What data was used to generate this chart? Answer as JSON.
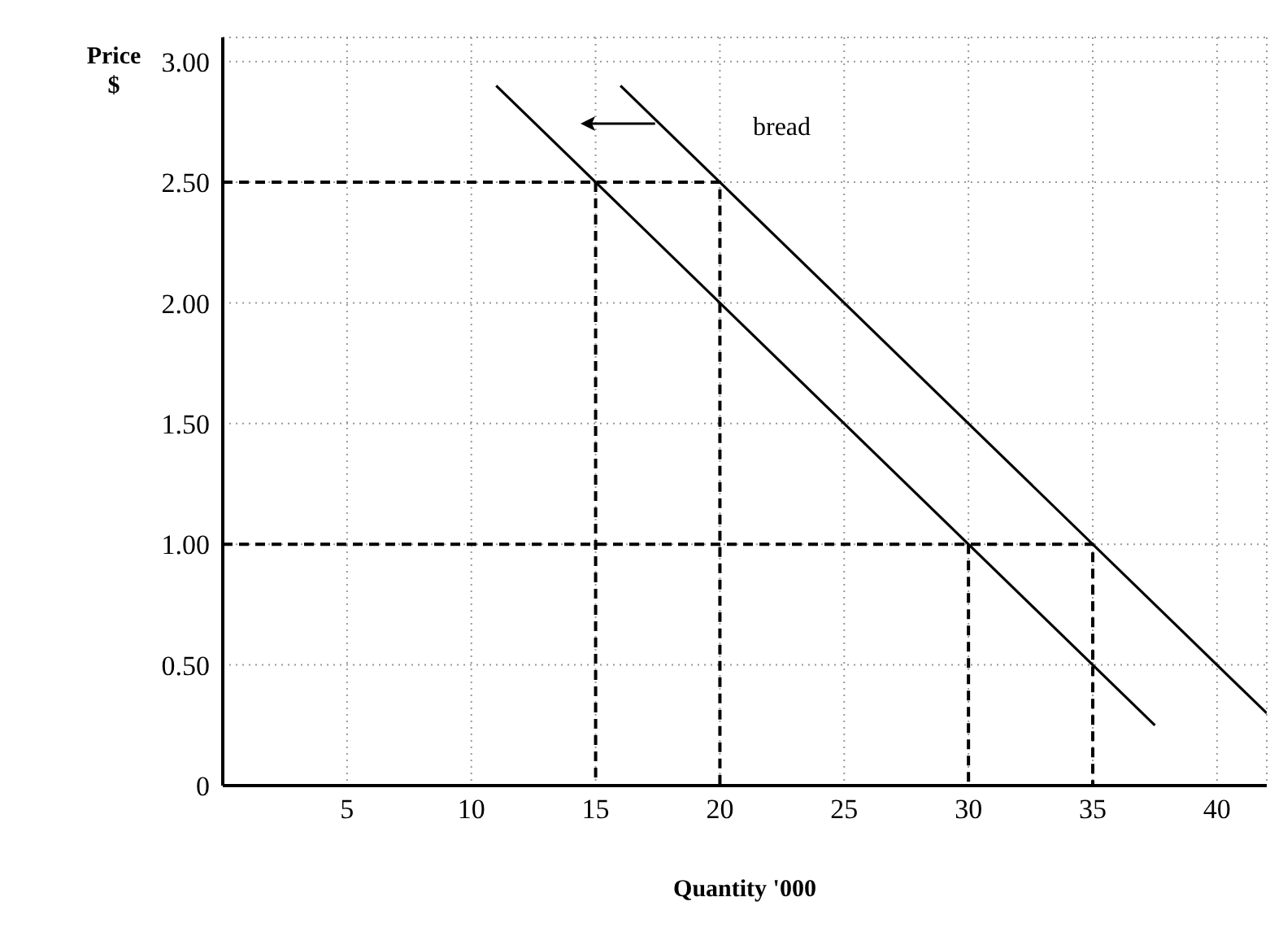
{
  "chart_data": {
    "type": "line",
    "xlabel": "Quantity '000",
    "ylabel": "Price $",
    "xlim": [
      0,
      42
    ],
    "xticks": [
      5,
      10,
      15,
      20,
      25,
      30,
      35,
      40
    ],
    "ylim": [
      0,
      3.1
    ],
    "yticks": [
      {
        "value": 0,
        "label": "0"
      },
      {
        "value": 0.5,
        "label": "0.50"
      },
      {
        "value": 1,
        "label": "1.00"
      },
      {
        "value": 1.5,
        "label": "1.50"
      },
      {
        "value": 2,
        "label": "2.00"
      },
      {
        "value": 2.5,
        "label": "2.50"
      },
      {
        "value": 3,
        "label": "3.00"
      }
    ],
    "grid": true,
    "marker": "none",
    "annotations": [
      "bread"
    ],
    "series": [
      {
        "color": "#000000",
        "x": [
          16,
          42
        ],
        "values": [
          2.9,
          0.3
        ]
      },
      {
        "color": "#000000",
        "x": [
          11,
          37.5
        ],
        "values": [
          2.9,
          0.25
        ]
      },
      {
        "color": "#000000",
        "line_style": "dashed",
        "x": [
          0,
          20,
          20
        ],
        "values": [
          2.5,
          2.5,
          0
        ]
      },
      {
        "color": "#000000",
        "line_style": "dashed",
        "x": [
          15,
          15
        ],
        "values": [
          2.5,
          0
        ]
      },
      {
        "color": "#000000",
        "line_style": "dashed",
        "x": [
          0,
          35,
          35
        ],
        "values": [
          1,
          1,
          0
        ]
      },
      {
        "color": "#000000",
        "line_style": "dashed",
        "x": [
          30,
          30
        ],
        "values": [
          1,
          0
        ]
      }
    ]
  }
}
